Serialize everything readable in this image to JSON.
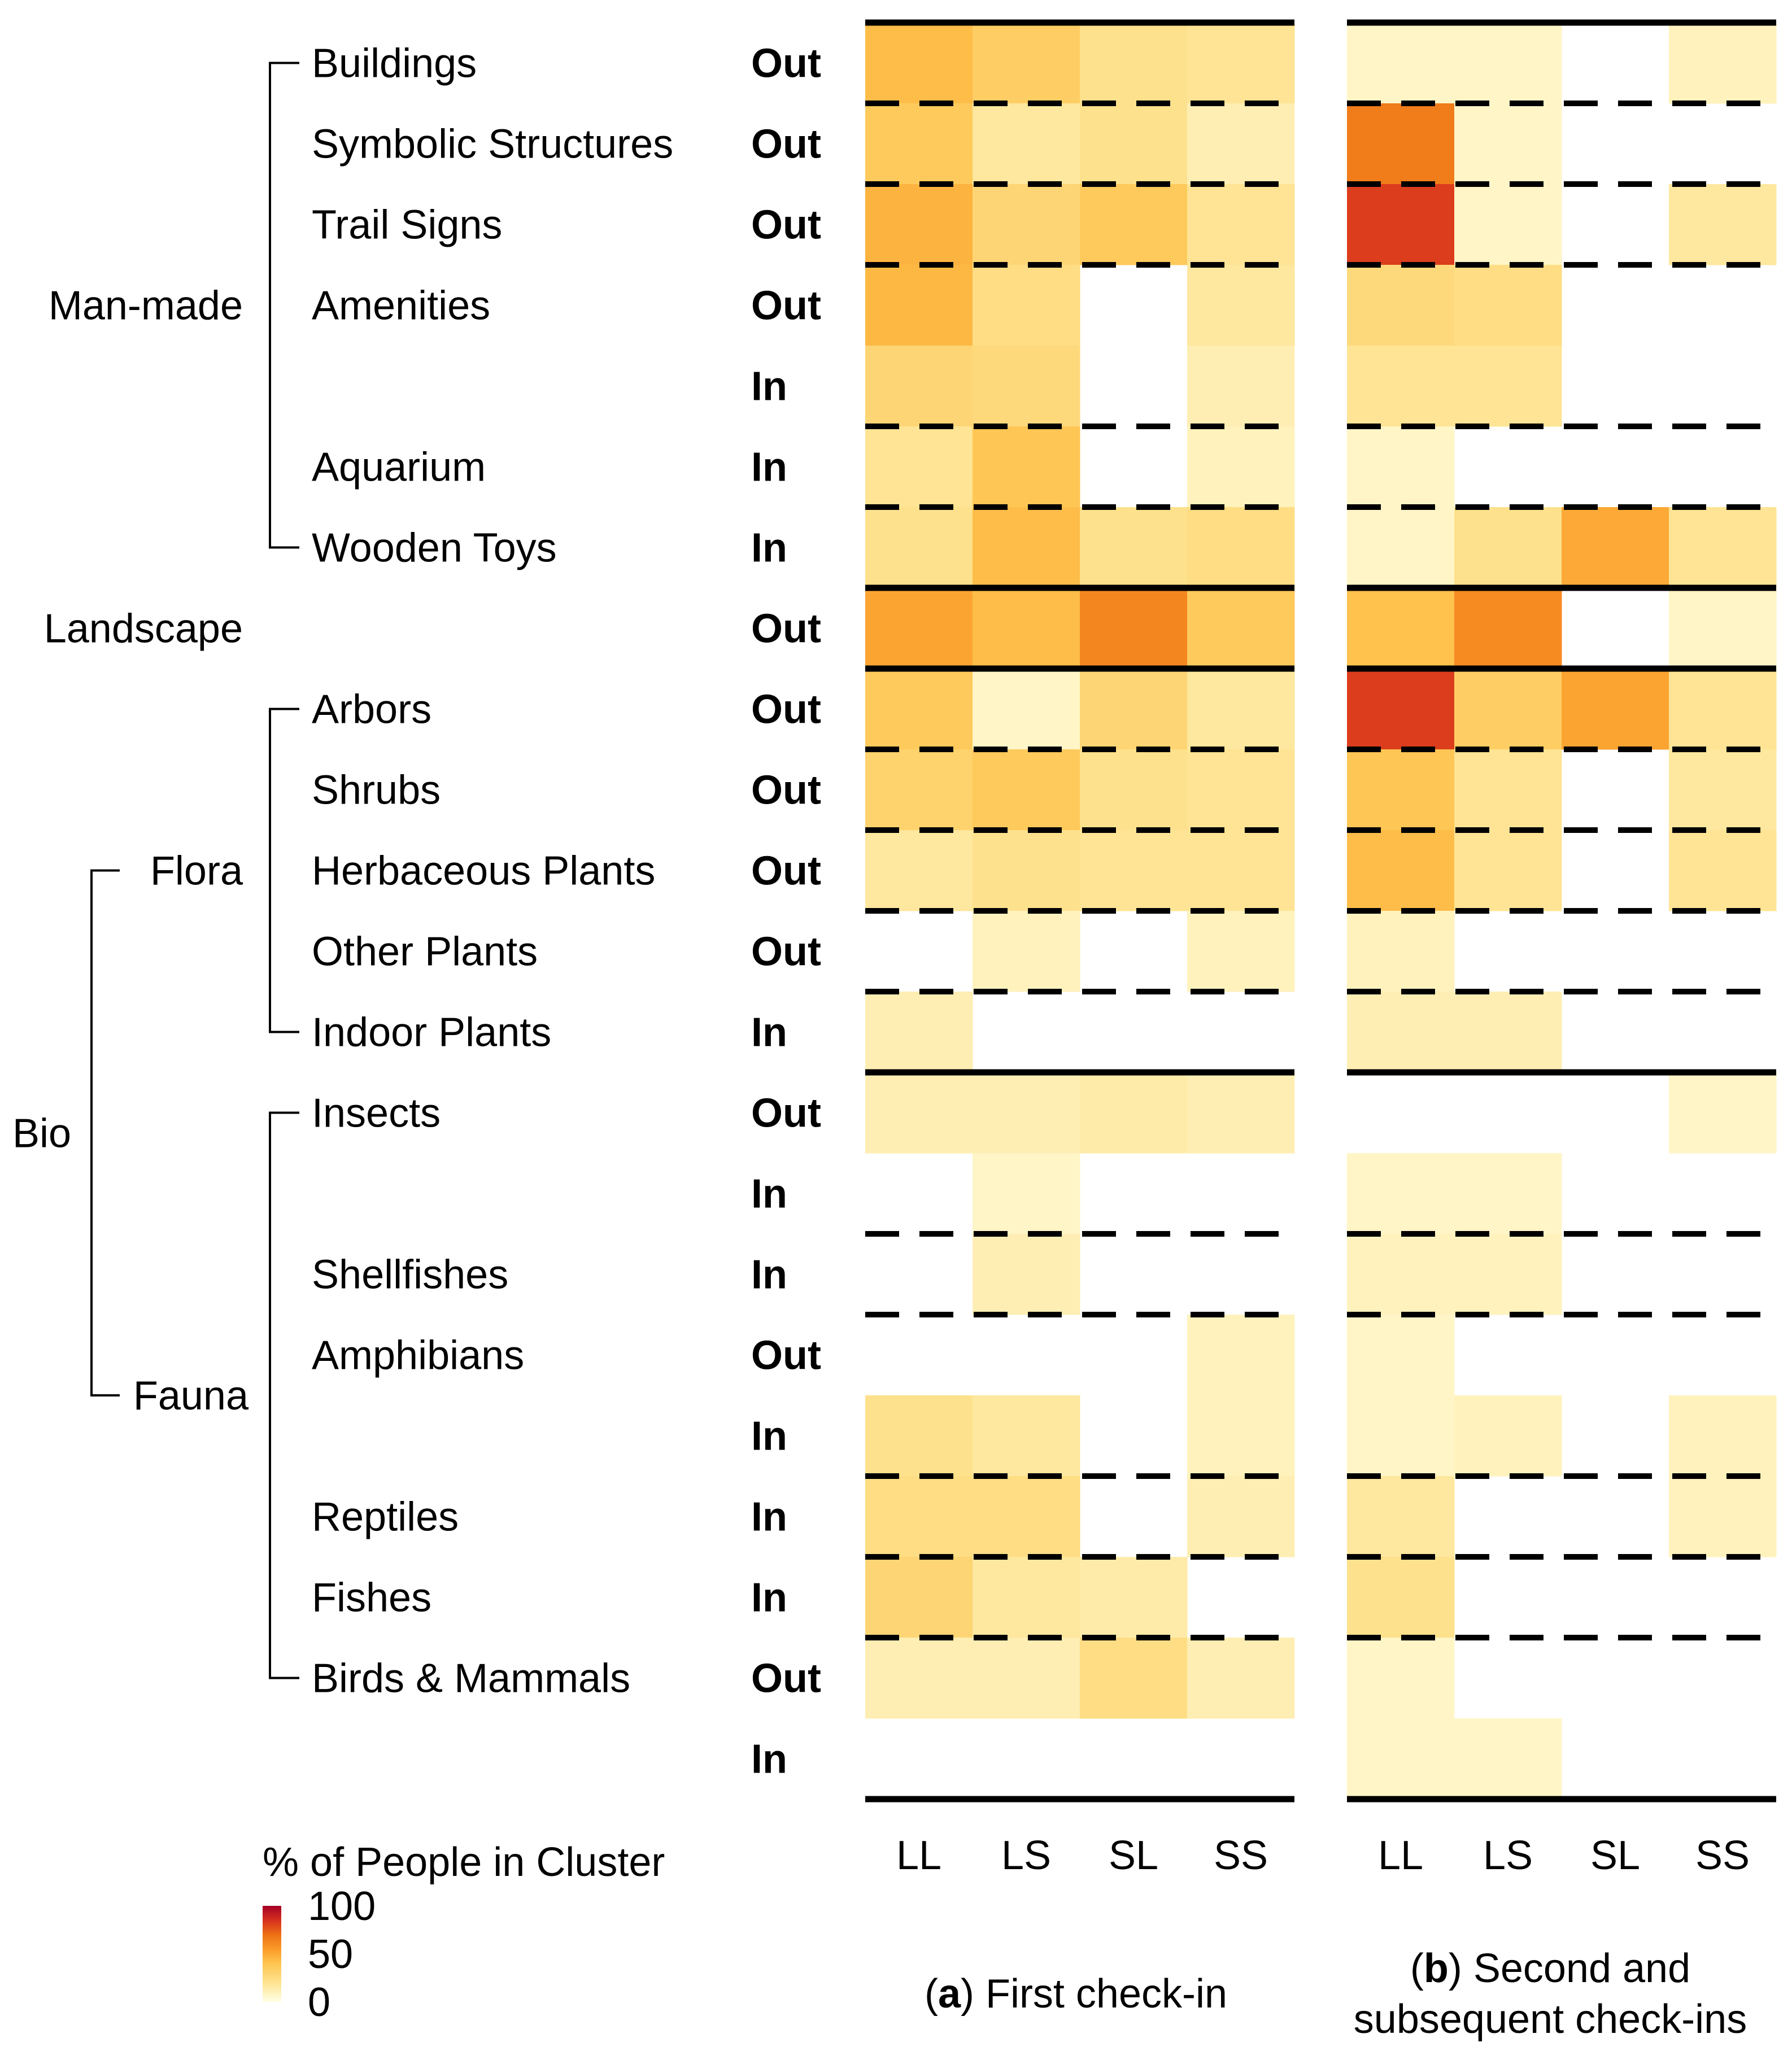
{
  "chart_data": {
    "type": "heatmap",
    "panels": [
      {
        "id": "a",
        "caption_letter": "a",
        "caption_line1": "First check-in",
        "caption_line2": ""
      },
      {
        "id": "b",
        "caption_letter": "b",
        "caption_line1": "Second and",
        "caption_line2": "subsequent check-ins"
      }
    ],
    "columns": [
      "LL",
      "LS",
      "SL",
      "SS"
    ],
    "rows": [
      {
        "item": "Buildings",
        "io": "Out"
      },
      {
        "item": "Symbolic Structures",
        "io": "Out"
      },
      {
        "item": "Trail Signs",
        "io": "Out"
      },
      {
        "item": "Amenities",
        "io": "Out"
      },
      {
        "item": "",
        "io": "In"
      },
      {
        "item": "Aquarium",
        "io": "In"
      },
      {
        "item": "Wooden Toys",
        "io": "In"
      },
      {
        "item": "",
        "io": "Out"
      },
      {
        "item": "Arbors",
        "io": "Out"
      },
      {
        "item": "Shrubs",
        "io": "Out"
      },
      {
        "item": "Herbaceous Plants",
        "io": "Out"
      },
      {
        "item": "Other Plants",
        "io": "Out"
      },
      {
        "item": "Indoor Plants",
        "io": "In"
      },
      {
        "item": "Insects",
        "io": "Out"
      },
      {
        "item": "",
        "io": "In"
      },
      {
        "item": "Shellfishes",
        "io": "In"
      },
      {
        "item": "Amphibians",
        "io": "Out"
      },
      {
        "item": "",
        "io": "In"
      },
      {
        "item": "Reptiles",
        "io": "In"
      },
      {
        "item": "Fishes",
        "io": "In"
      },
      {
        "item": "Birds & Mammals",
        "io": "Out"
      },
      {
        "item": "",
        "io": "In"
      }
    ],
    "values_first_checkin": [
      [
        36,
        28,
        18,
        16
      ],
      [
        30,
        14,
        18,
        10
      ],
      [
        40,
        24,
        30,
        16
      ],
      [
        38,
        20,
        null,
        14
      ],
      [
        24,
        22,
        null,
        10
      ],
      [
        16,
        32,
        null,
        8
      ],
      [
        18,
        36,
        18,
        20
      ],
      [
        46,
        36,
        58,
        30
      ],
      [
        30,
        6,
        24,
        14
      ],
      [
        26,
        30,
        18,
        16
      ],
      [
        14,
        18,
        16,
        16
      ],
      [
        null,
        8,
        null,
        8
      ],
      [
        10,
        null,
        null,
        null
      ],
      [
        10,
        10,
        12,
        10
      ],
      [
        null,
        6,
        null,
        null
      ],
      [
        null,
        10,
        null,
        null
      ],
      [
        null,
        null,
        null,
        8
      ],
      [
        18,
        14,
        null,
        8
      ],
      [
        20,
        20,
        null,
        10
      ],
      [
        24,
        14,
        12,
        null
      ],
      [
        10,
        10,
        20,
        10
      ],
      [
        null,
        null,
        null,
        null
      ]
    ],
    "values_subsequent_checkins": [
      [
        6,
        6,
        null,
        8
      ],
      [
        62,
        6,
        null,
        null
      ],
      [
        80,
        6,
        null,
        14
      ],
      [
        22,
        20,
        null,
        null
      ],
      [
        16,
        16,
        null,
        null
      ],
      [
        6,
        null,
        null,
        null
      ],
      [
        6,
        18,
        44,
        16
      ],
      [
        34,
        56,
        null,
        6
      ],
      [
        80,
        28,
        46,
        16
      ],
      [
        32,
        16,
        null,
        14
      ],
      [
        36,
        16,
        null,
        16
      ],
      [
        8,
        null,
        null,
        null
      ],
      [
        10,
        10,
        null,
        null
      ],
      [
        null,
        null,
        null,
        6
      ],
      [
        6,
        6,
        null,
        null
      ],
      [
        8,
        8,
        null,
        null
      ],
      [
        6,
        null,
        null,
        null
      ],
      [
        6,
        8,
        null,
        8
      ],
      [
        14,
        null,
        null,
        8
      ],
      [
        18,
        null,
        null,
        null
      ],
      [
        6,
        null,
        null,
        null
      ],
      [
        6,
        6,
        null,
        null
      ]
    ],
    "separators_after_row": {
      "solid": [
        6,
        7,
        12
      ],
      "dashed": [
        0,
        1,
        2,
        4,
        5,
        8,
        9,
        10,
        11,
        14,
        15,
        17,
        18,
        19
      ]
    },
    "groups": [
      {
        "label": "Man-made",
        "row_from": 0,
        "row_to": 6
      },
      {
        "label": "Landscape",
        "row_from": 7,
        "row_to": 7
      },
      {
        "label": "Flora",
        "row_from": 8,
        "row_to": 12
      },
      {
        "label": "Fauna",
        "row_from": 13,
        "row_to": 21
      },
      {
        "label": "Bio",
        "row_from": 8,
        "row_to": 21
      }
    ],
    "legend": {
      "title": "% of People in Cluster",
      "ticks": [
        "100",
        "50",
        "0"
      ],
      "range": [
        0,
        100
      ],
      "placement": "bottom-left"
    },
    "color_scale": [
      "#FFFFE5",
      "#FEE391",
      "#FEC44F",
      "#FB9A29",
      "#EC7014",
      "#D7301F",
      "#A50026"
    ]
  }
}
